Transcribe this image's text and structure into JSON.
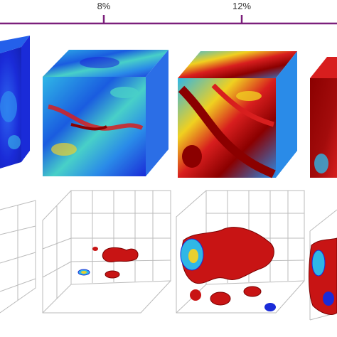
{
  "strain_axis": {
    "ticks": [
      "8%",
      "12%"
    ],
    "line_color": "#7b1f7b"
  },
  "panels": [
    {
      "id": "panel-1",
      "strain": ""
    },
    {
      "id": "panel-2",
      "strain": "8%"
    },
    {
      "id": "panel-3",
      "strain": "12%"
    },
    {
      "id": "panel-4",
      "strain": ""
    }
  ],
  "colors": {
    "low": "#1a2bd8",
    "mid": "#2fb7e6",
    "high": "#d81e1e",
    "extreme": "#8b0000",
    "isosurface": "#c81414",
    "grid": "#bbbbbb"
  }
}
